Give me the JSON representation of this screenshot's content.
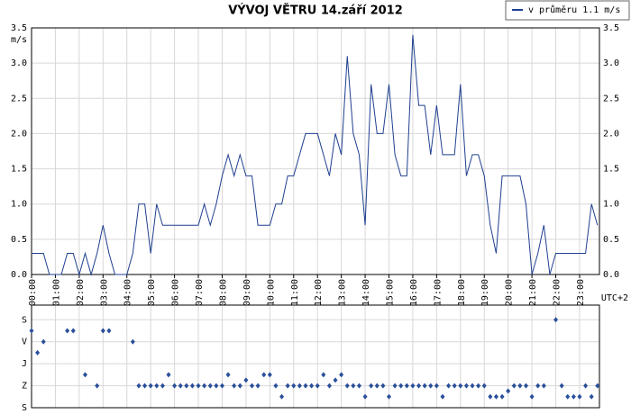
{
  "chart_data": [
    {
      "type": "line",
      "title": "VÝVOJ VĚTRU  14.září 2012",
      "y_label": "m/s",
      "x_label": "UTC+2",
      "xlim": [
        0,
        1430
      ],
      "xticks": [
        {
          "value": 0,
          "label": "00:00"
        },
        {
          "value": 60,
          "label": "01:00"
        },
        {
          "value": 120,
          "label": "02:00"
        },
        {
          "value": 180,
          "label": "03:00"
        },
        {
          "value": 240,
          "label": "04:00"
        },
        {
          "value": 300,
          "label": "05:00"
        },
        {
          "value": 360,
          "label": "06:00"
        },
        {
          "value": 420,
          "label": "07:00"
        },
        {
          "value": 480,
          "label": "08:00"
        },
        {
          "value": 540,
          "label": "09:00"
        },
        {
          "value": 600,
          "label": "10:00"
        },
        {
          "value": 660,
          "label": "11:00"
        },
        {
          "value": 720,
          "label": "12:00"
        },
        {
          "value": 780,
          "label": "13:00"
        },
        {
          "value": 840,
          "label": "14:00"
        },
        {
          "value": 900,
          "label": "15:00"
        },
        {
          "value": 960,
          "label": "16:00"
        },
        {
          "value": 1020,
          "label": "17:00"
        },
        {
          "value": 1080,
          "label": "18:00"
        },
        {
          "value": 1140,
          "label": "19:00"
        },
        {
          "value": 1200,
          "label": "20:00"
        },
        {
          "value": 1260,
          "label": "21:00"
        },
        {
          "value": 1320,
          "label": "22:00"
        },
        {
          "value": 1380,
          "label": "23:00"
        }
      ],
      "ylim": [
        0,
        3.5
      ],
      "yticks": [
        {
          "value": 0,
          "label": "0.0"
        },
        {
          "value": 0.5,
          "label": "0.5"
        },
        {
          "value": 1,
          "label": "1.0"
        },
        {
          "value": 1.5,
          "label": "1.5"
        },
        {
          "value": 2,
          "label": "2.0"
        },
        {
          "value": 2.5,
          "label": "2.5"
        },
        {
          "value": 3,
          "label": "3.0"
        },
        {
          "value": 3.5,
          "label": "3.5"
        }
      ],
      "grid": true,
      "legend": "top-right",
      "x": [
        0,
        15,
        30,
        45,
        60,
        75,
        90,
        105,
        120,
        135,
        150,
        165,
        180,
        195,
        210,
        225,
        240,
        255,
        270,
        285,
        300,
        315,
        330,
        345,
        360,
        375,
        390,
        405,
        420,
        435,
        450,
        465,
        480,
        495,
        510,
        525,
        540,
        555,
        570,
        585,
        600,
        615,
        630,
        645,
        660,
        675,
        690,
        705,
        720,
        735,
        750,
        765,
        780,
        795,
        810,
        825,
        840,
        855,
        870,
        885,
        900,
        915,
        930,
        945,
        960,
        975,
        990,
        1005,
        1020,
        1035,
        1050,
        1065,
        1080,
        1095,
        1110,
        1125,
        1140,
        1155,
        1170,
        1185,
        1200,
        1215,
        1230,
        1245,
        1260,
        1275,
        1290,
        1305,
        1320,
        1335,
        1350,
        1365,
        1380,
        1395,
        1410,
        1425
      ],
      "series": [
        {
          "name": "v průměru 1.1 m/s",
          "color": "#1f3f8f",
          "values": [
            0.3,
            0.3,
            0.3,
            0,
            0,
            0,
            0.3,
            0.3,
            0,
            0.3,
            0,
            0.3,
            0.7,
            0.3,
            0,
            0,
            0,
            0.3,
            1,
            1,
            0.3,
            1,
            0.7,
            0.7,
            0.7,
            0.7,
            0.7,
            0.7,
            0.7,
            1,
            0.7,
            1,
            1.4,
            1.7,
            1.4,
            1.7,
            1.4,
            1.4,
            0.7,
            0.7,
            0.7,
            1,
            1,
            1.4,
            1.4,
            1.7,
            2,
            2,
            2,
            1.7,
            1.4,
            2,
            1.7,
            3.1,
            2,
            1.7,
            0.7,
            2.7,
            2,
            2,
            2.7,
            1.7,
            1.4,
            1.4,
            3.4,
            2.4,
            2.4,
            1.7,
            2.4,
            1.7,
            1.7,
            1.7,
            2.7,
            1.4,
            1.7,
            1.7,
            1.4,
            0.7,
            0.3,
            1.4,
            1.4,
            1.4,
            1.4,
            1,
            0,
            0.3,
            0.7,
            0,
            0.3,
            0.3,
            0.3,
            0.3,
            0.3,
            0.3,
            1,
            0.7
          ]
        }
      ]
    },
    {
      "type": "scatter",
      "xlim": [
        0,
        1430
      ],
      "ylim": [
        360,
        -60
      ],
      "yticks": [
        {
          "value": 0,
          "label": "S"
        },
        {
          "value": 90,
          "label": "V"
        },
        {
          "value": 180,
          "label": "J"
        },
        {
          "value": 270,
          "label": "Z"
        },
        {
          "value": 360,
          "label": "S"
        }
      ],
      "grid": true,
      "x": [
        0,
        15,
        30,
        45,
        60,
        75,
        90,
        105,
        120,
        135,
        150,
        165,
        180,
        195,
        210,
        225,
        240,
        255,
        270,
        285,
        300,
        315,
        330,
        345,
        360,
        375,
        390,
        405,
        420,
        435,
        450,
        465,
        480,
        495,
        510,
        525,
        540,
        555,
        570,
        585,
        600,
        615,
        630,
        645,
        660,
        675,
        690,
        705,
        720,
        735,
        750,
        765,
        780,
        795,
        810,
        825,
        840,
        855,
        870,
        885,
        900,
        915,
        930,
        945,
        960,
        975,
        990,
        1005,
        1020,
        1035,
        1050,
        1065,
        1080,
        1095,
        1110,
        1125,
        1140,
        1155,
        1170,
        1185,
        1200,
        1215,
        1230,
        1245,
        1260,
        1275,
        1290,
        1305,
        1320,
        1335,
        1350,
        1365,
        1380,
        1395,
        1410,
        1425
      ],
      "series": [
        {
          "color": "#2a4f9a",
          "values": [
            45,
            135,
            90,
            null,
            null,
            null,
            45,
            45,
            null,
            225,
            null,
            270,
            45,
            45,
            null,
            null,
            null,
            90,
            270,
            270,
            270,
            270,
            270,
            225,
            270,
            270,
            270,
            270,
            270,
            270,
            270,
            270,
            270,
            225,
            270,
            270,
            247,
            270,
            270,
            225,
            225,
            270,
            315,
            270,
            270,
            270,
            270,
            270,
            270,
            225,
            270,
            247,
            225,
            270,
            270,
            270,
            315,
            270,
            270,
            270,
            315,
            270,
            270,
            270,
            270,
            270,
            270,
            270,
            270,
            315,
            270,
            270,
            270,
            270,
            270,
            270,
            270,
            315,
            315,
            315,
            292,
            270,
            270,
            270,
            315,
            270,
            270,
            null,
            0,
            270,
            315,
            315,
            315,
            270,
            315,
            270
          ]
        }
      ]
    }
  ]
}
